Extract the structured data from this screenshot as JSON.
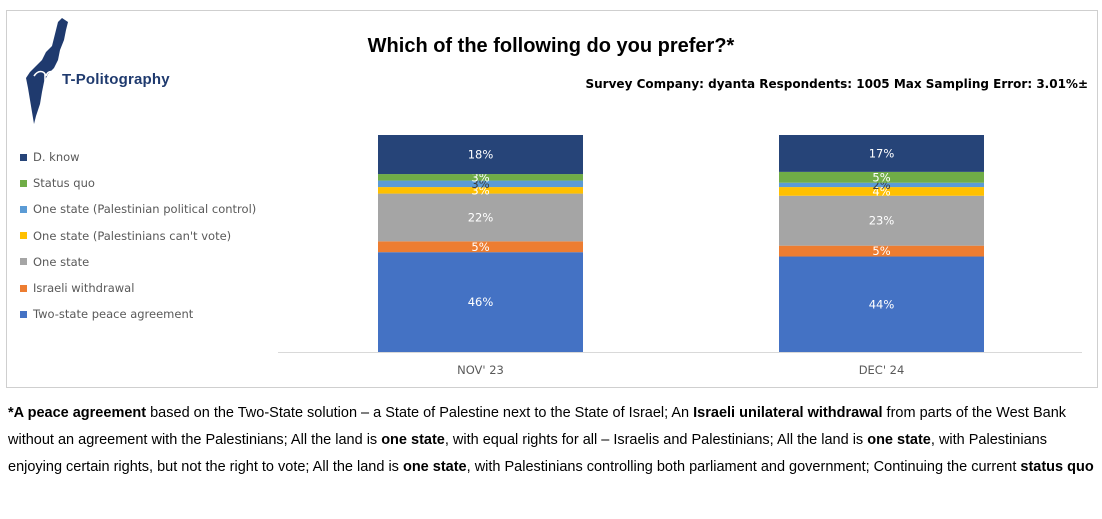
{
  "logo": {
    "name": "T-Politography"
  },
  "colors": {
    "logo_navy": "#1f3a6e",
    "axis": "#d9d9d9",
    "label_light": "#ffffff",
    "label_dark": "#404040"
  },
  "chart_data": {
    "type": "bar",
    "stacked": true,
    "title": "Which of the following do you prefer?*",
    "subtitle": "Survey Company: dyanta Respondents: 1005 Max Sampling Error: 3.01%±",
    "categories": [
      "NOV' 23",
      "DEC' 24"
    ],
    "ylim": [
      0,
      100
    ],
    "grid": false,
    "legend_position": "left",
    "legend_order": [
      "D. know",
      "Status quo",
      "One state (Palestinian political control)",
      "One state (Palestinians can't vote)",
      "One state",
      "Israeli withdrawal",
      "Two-state peace agreement"
    ],
    "series": [
      {
        "name": "Two-state peace agreement",
        "color": "#4472c4",
        "values": [
          46,
          44
        ],
        "labels": [
          "46%",
          "44%"
        ],
        "label_color": "#ffffff"
      },
      {
        "name": "Israeli withdrawal",
        "color": "#ed7d31",
        "values": [
          5,
          5
        ],
        "labels": [
          "5%",
          "5%"
        ],
        "label_color": "#ffffff"
      },
      {
        "name": "One state",
        "color": "#a5a5a5",
        "values": [
          22,
          23
        ],
        "labels": [
          "22%",
          "23%"
        ],
        "label_color": "#ffffff"
      },
      {
        "name": "One state (Palestinians can't vote)",
        "color": "#ffc000",
        "values": [
          3,
          4
        ],
        "labels": [
          "3%",
          "4%"
        ],
        "label_color": "#ffffff"
      },
      {
        "name": "One state (Palestinian political control)",
        "color": "#5b9bd5",
        "values": [
          3,
          2
        ],
        "labels": [
          "3%",
          "2%"
        ],
        "label_color": "#404040"
      },
      {
        "name": "Status quo",
        "color": "#70ad47",
        "values": [
          3,
          5
        ],
        "labels": [
          "3%",
          "5%"
        ],
        "label_color": "#ffffff"
      },
      {
        "name": "D. know",
        "color": "#264478",
        "values": [
          18,
          17
        ],
        "labels": [
          "18%",
          "17%"
        ],
        "label_color": "#ffffff"
      }
    ]
  },
  "footnote": {
    "segments": [
      {
        "text": "*A peace agreement",
        "bold": true
      },
      {
        "text": " based on the Two-State solution – a State of Palestine next to the State of Israel; An ",
        "bold": false
      },
      {
        "text": "Israeli unilateral withdrawal",
        "bold": true
      },
      {
        "text": " from parts of the West Bank without an agreement with the Palestinians; All the land is ",
        "bold": false
      },
      {
        "text": "one state",
        "bold": true
      },
      {
        "text": ", with equal rights for all – Israelis and Palestinians; All the land is ",
        "bold": false
      },
      {
        "text": "one state",
        "bold": true
      },
      {
        "text": ", with Palestinians enjoying certain rights, but not the right to vote; All the land is ",
        "bold": false
      },
      {
        "text": "one state",
        "bold": true
      },
      {
        "text": ", with Palestinians controlling both parliament and government; Continuing the current ",
        "bold": false
      },
      {
        "text": "status quo",
        "bold": true
      }
    ]
  }
}
